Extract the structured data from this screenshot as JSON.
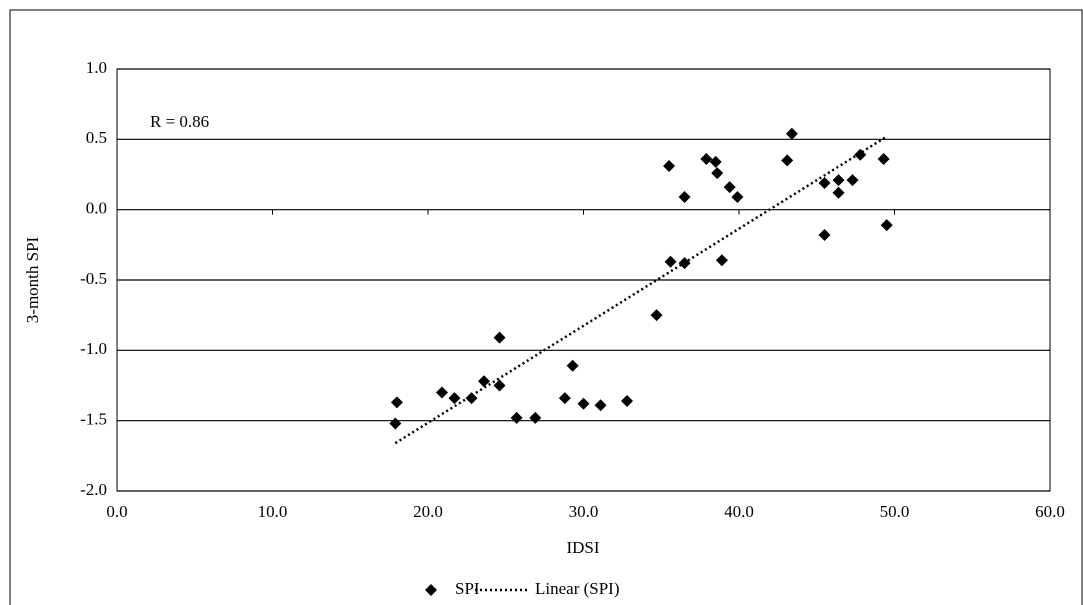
{
  "chart_data": {
    "type": "scatter",
    "x_label": "IDSI",
    "y_label": "3-month SPI",
    "annotation": "R = 0.86",
    "xlim": [
      0,
      60
    ],
    "ylim": [
      -2,
      1
    ],
    "xticks": [
      {
        "value": 0,
        "label": "0.0"
      },
      {
        "value": 10,
        "label": "10.0"
      },
      {
        "value": 20,
        "label": "20.0"
      },
      {
        "value": 30,
        "label": "30.0"
      },
      {
        "value": 40,
        "label": "40.0"
      },
      {
        "value": 50,
        "label": "50.0"
      },
      {
        "value": 60,
        "label": "60.0"
      }
    ],
    "yticks": [
      {
        "value": 1,
        "label": "1.0"
      },
      {
        "value": 0.5,
        "label": "0.5"
      },
      {
        "value": 0,
        "label": "0.0"
      },
      {
        "value": -0.5,
        "label": "-0.5"
      },
      {
        "value": -1,
        "label": "-1.0"
      },
      {
        "value": -1.5,
        "label": "-1.5"
      },
      {
        "value": -2,
        "label": "-2.0"
      }
    ],
    "grid": true,
    "legend": "bottom",
    "series": [
      {
        "name": "SPI",
        "color": "#000000",
        "x": [
          17.9,
          18.0,
          20.9,
          21.7,
          22.8,
          23.6,
          24.6,
          24.6,
          25.7,
          26.9,
          28.8,
          29.3,
          30.0,
          31.1,
          32.8,
          34.7,
          35.5,
          35.6,
          36.5,
          36.5,
          37.9,
          38.5,
          38.6,
          38.9,
          39.4,
          39.9,
          43.1,
          43.4,
          45.5,
          45.5,
          46.4,
          46.4,
          47.3,
          47.8,
          49.3,
          49.5
        ],
        "values": [
          -1.52,
          -1.37,
          -1.3,
          -1.34,
          -1.34,
          -1.22,
          -0.91,
          -1.25,
          -1.48,
          -1.48,
          -1.34,
          -1.11,
          -1.38,
          -1.39,
          -1.36,
          -0.75,
          0.31,
          -0.37,
          0.09,
          -0.38,
          0.36,
          0.34,
          0.26,
          -0.36,
          0.16,
          0.09,
          0.35,
          0.54,
          0.19,
          -0.18,
          0.21,
          0.12,
          0.21,
          0.39,
          0.36,
          -0.11
        ]
      }
    ],
    "trendline": {
      "name": "Linear (SPI)",
      "color": "#000000",
      "x": [
        17.9,
        49.5
      ],
      "values": [
        -1.66,
        0.52
      ]
    }
  }
}
